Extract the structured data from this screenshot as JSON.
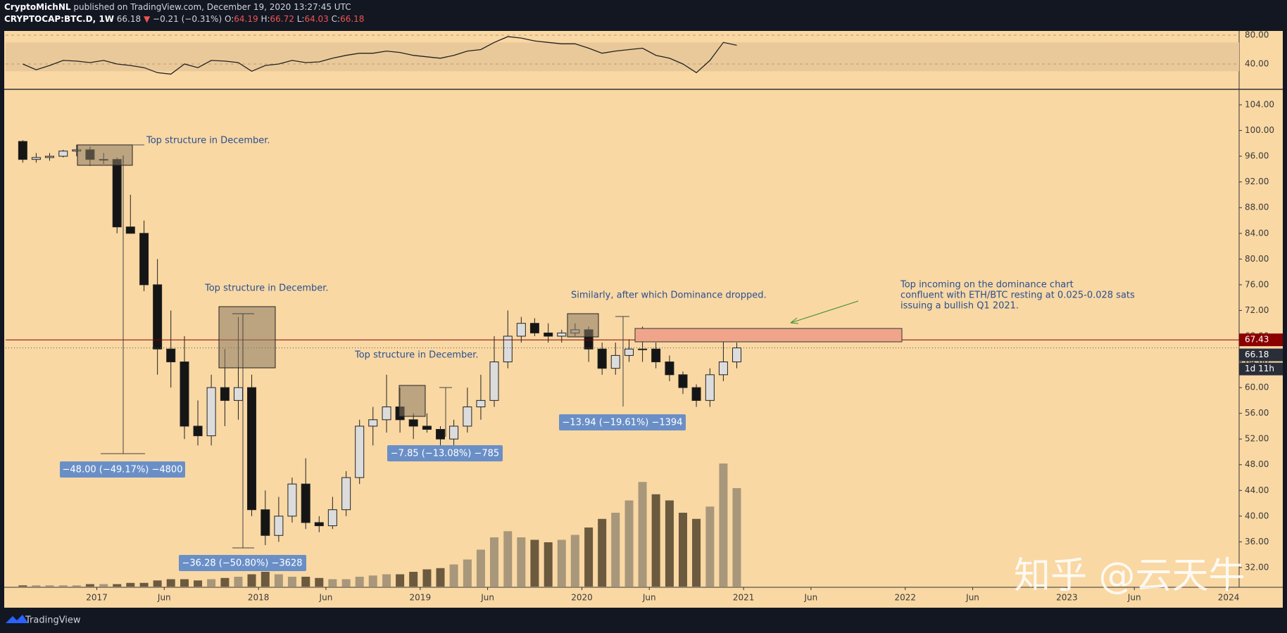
{
  "header": {
    "author": "CryptoMichNL",
    "published": "published on TradingView.com, December 19, 2020 13:27:45 UTC",
    "symbol": "CRYPTOCAP:BTC.D, 1W",
    "last": 66.18,
    "arrow": "▼",
    "change": "−0.21 (−0.31%)",
    "ohlc": [
      {
        "label": "O:",
        "value": 64.19
      },
      {
        "label": "H:",
        "value": 66.72
      },
      {
        "label": "L:",
        "value": 64.03
      },
      {
        "label": "C:",
        "value": 66.18
      }
    ]
  },
  "chart_data": [
    {
      "type": "candlestick",
      "x": [
        2016.542,
        2016.625,
        2016.708,
        2016.792,
        2016.875,
        2016.958,
        2017.042,
        2017.125,
        2017.208,
        2017.292,
        2017.375,
        2017.458,
        2017.542,
        2017.625,
        2017.708,
        2017.792,
        2017.875,
        2017.958,
        2018.042,
        2018.125,
        2018.208,
        2018.292,
        2018.375,
        2018.458,
        2018.542,
        2018.625,
        2018.708,
        2018.792,
        2018.875,
        2018.958,
        2019.042,
        2019.125,
        2019.208,
        2019.292,
        2019.375,
        2019.458,
        2019.542,
        2019.625,
        2019.708,
        2019.792,
        2019.875,
        2019.958,
        2020.042,
        2020.125,
        2020.208,
        2020.292,
        2020.375,
        2020.458,
        2020.542,
        2020.625,
        2020.708,
        2020.792,
        2020.875,
        2020.958
      ],
      "open": [
        98.3,
        95.5,
        95.8,
        96,
        96.8,
        97,
        95.5,
        95.5,
        85,
        84,
        76,
        66,
        64,
        54,
        52.5,
        60,
        58,
        60,
        41,
        37,
        40,
        45,
        39,
        38.5,
        41,
        46,
        54,
        55,
        57,
        55,
        54,
        53.5,
        52,
        54,
        57,
        58,
        64,
        68,
        70,
        68.5,
        68,
        68.5,
        69,
        66,
        63,
        65,
        66,
        66,
        64,
        62,
        60,
        58,
        62,
        64
      ],
      "high": [
        98.5,
        96.5,
        96.5,
        97,
        97.8,
        97.5,
        96.5,
        95.8,
        90,
        86,
        80,
        72,
        68,
        58,
        62,
        66,
        71,
        62,
        44,
        43,
        46,
        49,
        40,
        43,
        47,
        55,
        57,
        62,
        60,
        56,
        56,
        54,
        55,
        60,
        62,
        68,
        72,
        71,
        70.8,
        70,
        69,
        70,
        69.5,
        67,
        67,
        67.5,
        69.5,
        67,
        65,
        62.5,
        60.5,
        63,
        67.5,
        67
      ],
      "low": [
        95,
        95,
        95.3,
        95.8,
        96,
        94.5,
        94.8,
        84,
        84,
        75,
        62,
        60,
        52,
        51,
        51,
        54,
        55,
        40,
        35.5,
        36,
        39,
        38,
        37.5,
        38,
        40,
        45,
        51,
        53,
        53,
        52,
        53,
        51,
        51,
        53,
        55,
        57,
        63,
        67,
        68,
        67,
        67,
        68,
        64,
        62,
        62,
        64,
        64,
        63,
        61,
        59,
        57,
        57,
        61,
        63
      ],
      "close": [
        95.5,
        95.8,
        96,
        96.8,
        97,
        95.5,
        95.5,
        85,
        84,
        76,
        66,
        64,
        54,
        52.5,
        60,
        58,
        60,
        41,
        37,
        40,
        45,
        39,
        38.5,
        41,
        46,
        54,
        55,
        57,
        55,
        54,
        53.5,
        52,
        54,
        57,
        58,
        64,
        68,
        70,
        68.5,
        68,
        68.5,
        69,
        66,
        63,
        65,
        66,
        66,
        64,
        62,
        60,
        58,
        62,
        64,
        66.18
      ],
      "volume": [
        1,
        1,
        1,
        1,
        1,
        2,
        2,
        2,
        3,
        3,
        5,
        6,
        6,
        5,
        6,
        7,
        8,
        10,
        12,
        10,
        8,
        8,
        7,
        6,
        6,
        8,
        9,
        10,
        10,
        12,
        14,
        15,
        18,
        22,
        30,
        40,
        45,
        40,
        38,
        36,
        38,
        42,
        48,
        55,
        60,
        70,
        85,
        75,
        70,
        60,
        55,
        65,
        100,
        80
      ],
      "up_color": "#dcdcdc",
      "down_color": "#151515",
      "volume_up_color": "#a8977a",
      "volume_down_color": "#6b5a3e",
      "xlim": [
        2016.436,
        2024.065
      ],
      "xticks": [
        2017,
        {
          "value": 2017.417,
          "label": "Jun"
        },
        2018,
        {
          "value": 2018.417,
          "label": "Jun"
        },
        2019,
        {
          "value": 2019.417,
          "label": "Jun"
        },
        2020,
        {
          "value": 2020.417,
          "label": "Jun"
        },
        2021,
        {
          "value": 2021.417,
          "label": "Jun"
        },
        2022,
        {
          "value": 2022.417,
          "label": "Jun"
        },
        2023,
        {
          "value": 2023.417,
          "label": "Jun"
        },
        2024
      ],
      "ylim": [
        29.04,
        106.3
      ],
      "yticks": [
        {
          "value": 104,
          "label": "104.00"
        },
        {
          "value": 100,
          "label": "100.00"
        },
        {
          "value": 96,
          "label": "96.00"
        },
        {
          "value": 92,
          "label": "92.00"
        },
        {
          "value": 88,
          "label": "88.00"
        },
        {
          "value": 84,
          "label": "84.00"
        },
        {
          "value": 80,
          "label": "80.00"
        },
        {
          "value": 76,
          "label": "76.00"
        },
        {
          "value": 72,
          "label": "72.00"
        },
        {
          "value": 68,
          "label": "68.00"
        },
        {
          "value": 64,
          "label": "64.00"
        },
        {
          "value": 60,
          "label": "60.00"
        },
        {
          "value": 56,
          "label": "56.00"
        },
        {
          "value": 52,
          "label": "52.00"
        },
        {
          "value": 48,
          "label": "48.00"
        },
        {
          "value": 44,
          "label": "44.00"
        },
        {
          "value": 40,
          "label": "40.00"
        },
        {
          "value": 36,
          "label": "36.00"
        },
        {
          "value": 32,
          "label": "32.00"
        }
      ],
      "price_line": 67.43,
      "price_line_color": "#8b0000",
      "last_price": 66.18,
      "countdown": "1d 11h"
    },
    {
      "type": "line",
      "color": "#222222",
      "band": [
        30,
        70
      ],
      "band_color": "#e9c99a",
      "values": [
        40,
        32,
        38,
        45,
        44,
        42,
        45,
        40,
        38,
        35,
        28,
        26,
        40,
        35,
        45,
        44,
        42,
        30,
        38,
        40,
        45,
        42,
        43,
        48,
        52,
        55,
        55,
        58,
        56,
        52,
        50,
        48,
        52,
        58,
        60,
        70,
        78,
        76,
        72,
        70,
        68,
        68,
        62,
        55,
        58,
        60,
        62,
        52,
        48,
        40,
        28,
        45,
        70,
        66
      ],
      "ylim": [
        5.9,
        85.9
      ],
      "yticks": [
        {
          "value": 80,
          "label": "80.00"
        },
        {
          "value": 40,
          "label": "40.00"
        }
      ]
    }
  ],
  "annotations": {
    "top1": "Top structure in December.",
    "top2": "Top structure in December.",
    "top3": "Top structure in December.",
    "similar": "Similarly, after which Dominance dropped.",
    "note": [
      "Top incoming on the dominance chart",
      "confluent with ETH/BTC resting at 0.025-0.028 sats",
      "issuing a bullish Q1 2021."
    ],
    "measures": [
      "−48.00 (−49.17%) −4800",
      "−36.28 (−50.80%) −3628",
      "−7.85 (−13.08%) −785",
      "−13.94 (−19.61%) −1394"
    ]
  },
  "footer": {
    "brand": "TradingView",
    "watermark": "知乎 @云天牛"
  }
}
